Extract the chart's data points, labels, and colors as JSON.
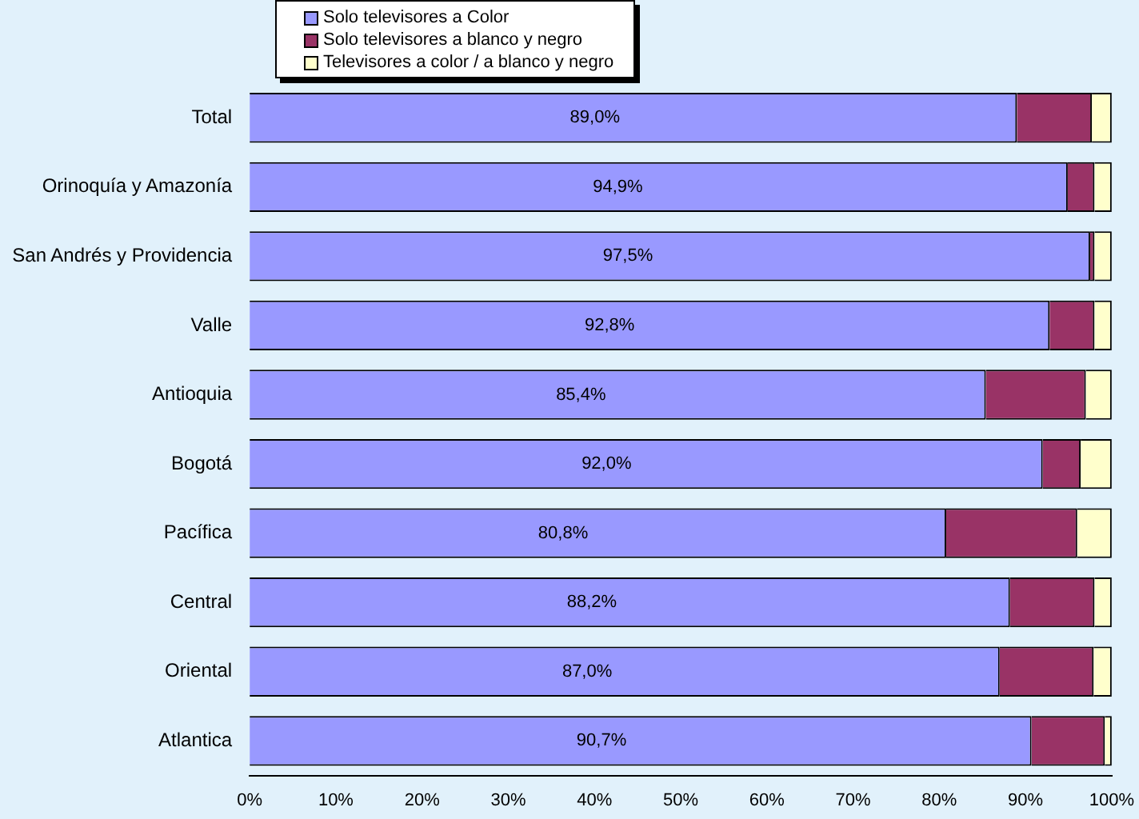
{
  "chart_data": {
    "type": "bar",
    "orientation": "horizontal",
    "stacked": true,
    "categories": [
      "Total",
      "Orinoquía y Amazonía",
      "San Andrés y Providencia",
      "Valle",
      "Antioquia",
      "Bogotá",
      "Pacífica",
      "Central",
      "Oriental",
      "Atlantica"
    ],
    "series": [
      {
        "name": "Solo televisores a Color",
        "color": "#9999ff",
        "values": [
          89.0,
          94.9,
          97.5,
          92.8,
          85.4,
          92.0,
          80.8,
          88.2,
          87.0,
          90.7
        ],
        "value_labels": [
          "89,0%",
          "94,9%",
          "97,5%",
          "92,8%",
          "85,4%",
          "92,0%",
          "80,8%",
          "88,2%",
          "87,0%",
          "90,7%"
        ]
      },
      {
        "name": "Solo televisores a blanco y negro",
        "color": "#993366",
        "values": [
          8.7,
          3.1,
          0.5,
          5.2,
          11.6,
          4.4,
          15.2,
          9.8,
          10.9,
          8.5
        ]
      },
      {
        "name": "Televisores a color / a blanco y negro",
        "color": "#ffffcc",
        "values": [
          2.3,
          2.0,
          2.0,
          2.0,
          3.0,
          3.6,
          4.0,
          2.0,
          2.1,
          0.8
        ]
      }
    ],
    "xlim": [
      0,
      100
    ],
    "xticks": [
      {
        "value": 0,
        "label": "0%"
      },
      {
        "value": 10,
        "label": "10%"
      },
      {
        "value": 20,
        "label": "20%"
      },
      {
        "value": 30,
        "label": "30%"
      },
      {
        "value": 40,
        "label": "40%"
      },
      {
        "value": 50,
        "label": "50%"
      },
      {
        "value": 60,
        "label": "60%"
      },
      {
        "value": 70,
        "label": "70%"
      },
      {
        "value": 80,
        "label": "80%"
      },
      {
        "value": 90,
        "label": "90%"
      },
      {
        "value": 100,
        "label": "100%"
      }
    ],
    "grid": false,
    "legend": "top"
  }
}
